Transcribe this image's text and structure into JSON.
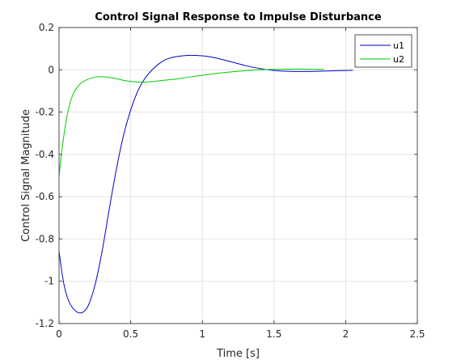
{
  "chart_data": {
    "type": "line",
    "title": "Control Signal Response to Impulse Disturbance",
    "xlabel": "Time [s]",
    "ylabel": "Control Signal Magnitude",
    "xlim": [
      0,
      2.5
    ],
    "ylim": [
      -1.2,
      0.2
    ],
    "xticks": [
      0,
      0.5,
      1,
      1.5,
      2,
      2.5
    ],
    "xtick_labels": [
      "0",
      "0.5",
      "1",
      "1.5",
      "2",
      "2.5"
    ],
    "yticks": [
      -1.2,
      -1,
      -0.8,
      -0.6,
      -0.4,
      -0.2,
      0,
      0.2
    ],
    "ytick_labels": [
      "-1.2",
      "-1",
      "-0.8",
      "-0.6",
      "-0.4",
      "-0.2",
      "0",
      "0.2"
    ],
    "grid": true,
    "legend_position": "top-right",
    "series": [
      {
        "name": "u1",
        "color": "#0000cc",
        "x": [
          0,
          0.03,
          0.06,
          0.1,
          0.15,
          0.2,
          0.25,
          0.3,
          0.35,
          0.4,
          0.45,
          0.5,
          0.55,
          0.6,
          0.65,
          0.7,
          0.75,
          0.8,
          0.85,
          0.9,
          0.95,
          1.0,
          1.05,
          1.1,
          1.2,
          1.3,
          1.4,
          1.5,
          1.6,
          1.7,
          1.8,
          1.9,
          2.0,
          2.05
        ],
        "y": [
          -0.86,
          -1.0,
          -1.08,
          -1.13,
          -1.15,
          -1.12,
          -1.02,
          -0.86,
          -0.66,
          -0.47,
          -0.31,
          -0.19,
          -0.1,
          -0.04,
          0.0,
          0.03,
          0.05,
          0.06,
          0.065,
          0.068,
          0.068,
          0.066,
          0.062,
          0.055,
          0.038,
          0.02,
          0.006,
          -0.003,
          -0.007,
          -0.008,
          -0.007,
          -0.005,
          -0.003,
          -0.003
        ]
      },
      {
        "name": "u2",
        "color": "#00cc00",
        "x": [
          0,
          0.02,
          0.05,
          0.08,
          0.11,
          0.15,
          0.2,
          0.25,
          0.3,
          0.35,
          0.4,
          0.45,
          0.5,
          0.55,
          0.6,
          0.65,
          0.7,
          0.8,
          0.9,
          1.0,
          1.1,
          1.2,
          1.3,
          1.4,
          1.5,
          1.6,
          1.7,
          1.8,
          1.85
        ],
        "y": [
          -0.5,
          -0.38,
          -0.24,
          -0.15,
          -0.1,
          -0.065,
          -0.045,
          -0.035,
          -0.033,
          -0.036,
          -0.042,
          -0.05,
          -0.055,
          -0.058,
          -0.058,
          -0.056,
          -0.052,
          -0.045,
          -0.035,
          -0.026,
          -0.017,
          -0.01,
          -0.004,
          0.0,
          0.002,
          0.003,
          0.003,
          0.002,
          0.002
        ]
      }
    ]
  }
}
